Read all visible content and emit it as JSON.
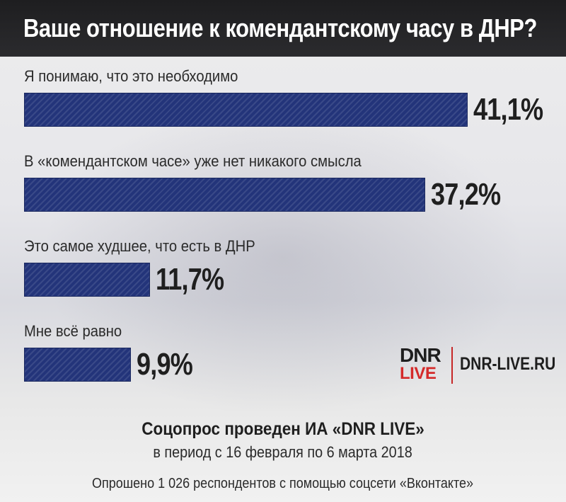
{
  "header": {
    "title": "Ваше отношение к комендантскому часу в ДНР?"
  },
  "chart_data": {
    "type": "bar",
    "orientation": "horizontal",
    "title": "Ваше отношение к комендантскому часу в ДНР?",
    "unit": "%",
    "categories": [
      "Я понимаю, что это необходимо",
      "В «комендантском часе» уже нет никакого смысла",
      "Это самое худшее, что есть в ДНР",
      "Мне всё равно"
    ],
    "values": [
      41.1,
      37.2,
      11.7,
      9.9
    ],
    "value_labels": [
      "41,1%",
      "37,2%",
      "11,7%",
      "9,9%"
    ],
    "bar_color": "#23347a",
    "grid": false,
    "legend": "none"
  },
  "branding": {
    "logo_top": "DNR",
    "logo_bottom": "LIVE",
    "logo_accent": "#d42a2a",
    "site": "DNR-LIVE.RU"
  },
  "footer": {
    "line1": "Соцопрос проведен ИА «DNR LIVE»",
    "line2": "в период с 16 февраля по 6 марта 2018",
    "line3": "Опрошено 1 026 респондентов с помощью соцсети «Вконтакте»"
  }
}
